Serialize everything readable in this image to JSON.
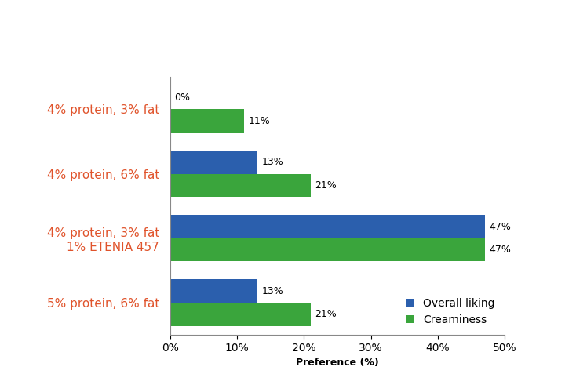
{
  "chart_data": {
    "type": "bar",
    "orientation": "horizontal",
    "categories": [
      "4% protein, 3% fat",
      "4% protein, 6% fat",
      "4% protein, 3% fat\n1% ETENIA 457",
      "5% protein, 6% fat"
    ],
    "series": [
      {
        "name": "Overall liking",
        "color": "#2b5fad",
        "values": [
          0,
          13,
          47,
          13
        ],
        "value_labels": [
          "0%",
          "13%",
          "47%",
          "13%"
        ]
      },
      {
        "name": "Creaminess",
        "color": "#3aa53c",
        "values": [
          11,
          21,
          47,
          21
        ],
        "value_labels": [
          "11%",
          "21%",
          "47%",
          "21%"
        ]
      }
    ],
    "x_label": "Preference (%)",
    "xlim": [
      0,
      50
    ],
    "xticks": [
      {
        "value": 0,
        "label": "0%"
      },
      {
        "value": 10,
        "label": "10%"
      },
      {
        "value": 20,
        "label": "20%"
      },
      {
        "value": 30,
        "label": "30%"
      },
      {
        "value": 40,
        "label": "40%"
      },
      {
        "value": 50,
        "label": "50%"
      }
    ],
    "legend": "lower right",
    "data_labels": true,
    "grid": false
  }
}
